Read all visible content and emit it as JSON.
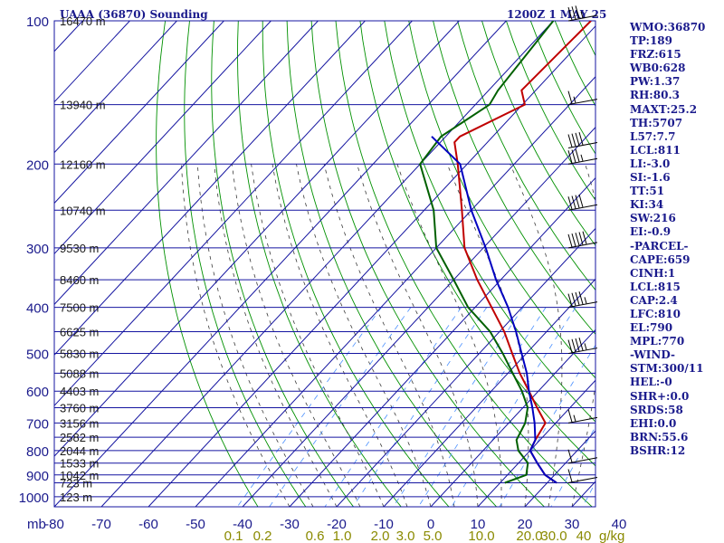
{
  "chart_data": {
    "type": "line",
    "title": "UAAA (36870) Sounding",
    "valid_time": "1200Z  1 MAY 25",
    "pressure_unit_label": "mb",
    "pressure_ticks": [
      100,
      200,
      300,
      400,
      500,
      600,
      700,
      800,
      900,
      1000
    ],
    "temp_ticks": [
      -80,
      -70,
      -60,
      -50,
      -40,
      -30,
      -20,
      -10,
      0,
      10,
      20,
      30,
      40
    ],
    "xlim": [
      -80,
      40
    ],
    "ylim": [
      1050,
      100
    ],
    "mixing_ratio_labels": [
      "0.1",
      "0.2",
      "0.6",
      "1.0",
      "2.0",
      "3.0",
      "5.0",
      "10.0",
      "20.0",
      "30.0",
      "40"
    ],
    "mixing_ratio_unit": "g/kg",
    "heights": [
      {
        "label": "16470 m",
        "p": 100
      },
      {
        "label": "13940 m",
        "p": 150
      },
      {
        "label": "12160 m",
        "p": 200
      },
      {
        "label": "10740 m",
        "p": 250
      },
      {
        "label": "9530 m",
        "p": 300
      },
      {
        "label": "8460 m",
        "p": 350
      },
      {
        "label": "7500 m",
        "p": 400
      },
      {
        "label": "6625 m",
        "p": 450
      },
      {
        "label": "5830 m",
        "p": 500
      },
      {
        "label": "5088 m",
        "p": 550
      },
      {
        "label": "4403 m",
        "p": 600
      },
      {
        "label": "3760 m",
        "p": 650
      },
      {
        "label": "3156 m",
        "p": 700
      },
      {
        "label": "2582 m",
        "p": 750
      },
      {
        "label": "2044 m",
        "p": 800
      },
      {
        "label": "1533 m",
        "p": 850
      },
      {
        "label": "1042 m",
        "p": 900
      },
      {
        "label": "723 m",
        "p": 935
      },
      {
        "label": "123 m",
        "p": 1000
      }
    ],
    "series": [
      {
        "name": "temperature",
        "color": "#c00000",
        "points": [
          [
            -62,
            100
          ],
          [
            -63,
            140
          ],
          [
            -59.5,
            150
          ],
          [
            -67,
            175
          ],
          [
            -67,
            180
          ],
          [
            -62,
            200
          ],
          [
            -52,
            250
          ],
          [
            -44,
            300
          ],
          [
            -35,
            350
          ],
          [
            -26.5,
            400
          ],
          [
            -19,
            450
          ],
          [
            -13,
            500
          ],
          [
            -7.5,
            550
          ],
          [
            -2,
            600
          ],
          [
            3,
            650
          ],
          [
            7.8,
            700
          ],
          [
            9,
            760
          ],
          [
            10,
            800
          ],
          [
            14,
            850
          ],
          [
            18,
            900
          ],
          [
            22,
            935
          ]
        ]
      },
      {
        "name": "dewpoint",
        "color": "#006000",
        "points": [
          [
            -70,
            100
          ],
          [
            -68,
            140
          ],
          [
            -67,
            150
          ],
          [
            -71,
            175
          ],
          [
            -70,
            200
          ],
          [
            -58,
            250
          ],
          [
            -50,
            300
          ],
          [
            -40,
            350
          ],
          [
            -31.5,
            400
          ],
          [
            -22,
            450
          ],
          [
            -15,
            500
          ],
          [
            -9,
            550
          ],
          [
            -3.5,
            600
          ],
          [
            1,
            650
          ],
          [
            3.5,
            700
          ],
          [
            5,
            760
          ],
          [
            7.5,
            800
          ],
          [
            12,
            850
          ],
          [
            14,
            900
          ],
          [
            11,
            935
          ]
        ]
      },
      {
        "name": "parcel",
        "color": "#0000c0",
        "points": [
          [
            -73,
            175
          ],
          [
            -61.5,
            200
          ],
          [
            -50,
            250
          ],
          [
            -39.5,
            300
          ],
          [
            -31,
            350
          ],
          [
            -23,
            400
          ],
          [
            -16.5,
            450
          ],
          [
            -11,
            500
          ],
          [
            -6,
            550
          ],
          [
            -2,
            600
          ],
          [
            2,
            650
          ],
          [
            5.5,
            700
          ],
          [
            9,
            760
          ],
          [
            10,
            800
          ],
          [
            14,
            850
          ],
          [
            18,
            900
          ],
          [
            22,
            935
          ]
        ]
      }
    ],
    "wind_barbs": [
      {
        "p": 100,
        "speed_kt": 35
      },
      {
        "p": 150,
        "speed_kt": 15
      },
      {
        "p": 185,
        "speed_kt": 40
      },
      {
        "p": 200,
        "speed_kt": 35
      },
      {
        "p": 250,
        "speed_kt": 40
      },
      {
        "p": 300,
        "speed_kt": 50
      },
      {
        "p": 400,
        "speed_kt": 45
      },
      {
        "p": 500,
        "speed_kt": 45
      },
      {
        "p": 700,
        "speed_kt": 15
      },
      {
        "p": 850,
        "speed_kt": 10
      },
      {
        "p": 935,
        "speed_kt": 10
      }
    ]
  },
  "indices": [
    "WMO:36870",
    "TP:189",
    "FRZ:615",
    "WB0:628",
    "PW:1.37",
    "RH:80.3",
    "MAXT:25.2",
    "TH:5707",
    "L57:7.7",
    "LCL:811",
    "LI:-3.0",
    "SI:-1.6",
    "TT:51",
    "KI:34",
    "SW:216",
    "EI:-0.9",
    "-PARCEL-",
    "CAPE:659",
    "CINH:1",
    "LCL:815",
    "CAP:2.4",
    "LFC:810",
    "EL:790",
    "MPL:770",
    "-WIND-",
    "STM:300/11",
    "HEL:-0",
    "SHR+:0.0",
    "SRDS:58",
    "EHI:0.0",
    "BRN:55.6",
    "BSHR:12"
  ],
  "colors": {
    "grid": "#1414a0",
    "dry_adiabat": "#009000",
    "moist_adiabat": "#3a3a3a",
    "mixing_ratio": "#4a90ff",
    "label_blue": "#1a1a8c",
    "label_olive": "#8a8a00"
  }
}
